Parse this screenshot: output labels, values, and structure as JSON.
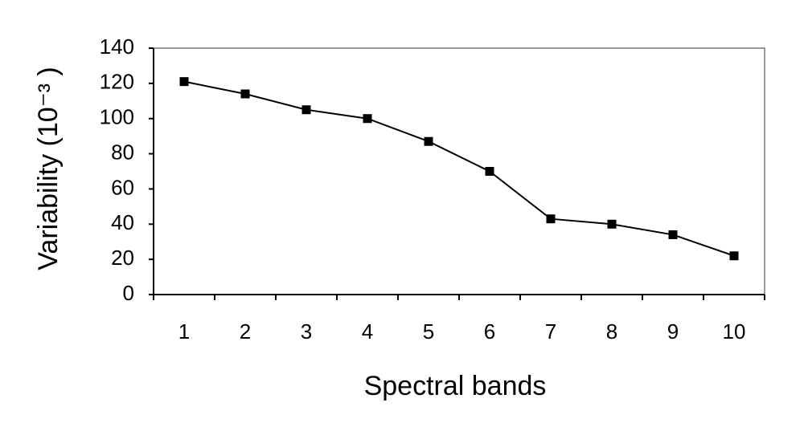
{
  "chart_data": {
    "type": "line",
    "x_label": "Spectral bands",
    "y_label": "Variability (10⁻³ )",
    "categories": [
      "1",
      "2",
      "3",
      "4",
      "5",
      "6",
      "7",
      "8",
      "9",
      "10"
    ],
    "values": [
      121,
      114,
      105,
      100,
      87,
      70,
      43,
      40,
      34,
      22
    ],
    "color": "#000000",
    "ylim": [
      0,
      140
    ],
    "yticks": [
      0,
      20,
      40,
      60,
      80,
      100,
      120,
      140
    ],
    "grid": false
  }
}
